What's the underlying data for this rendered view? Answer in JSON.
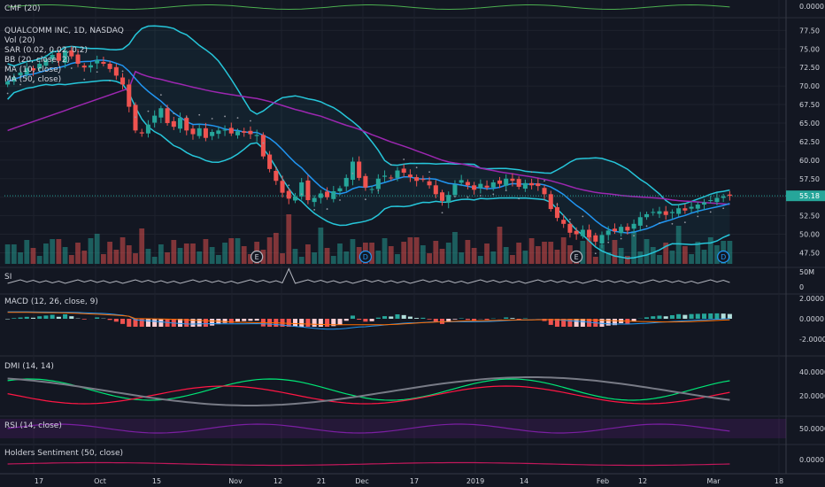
{
  "chart_data": {
    "type": "candlestick",
    "symbol_title": "QUALCOMM INC, 1D, NASDAQ",
    "last_price": "55.18",
    "time_axis_labels": [
      "17",
      "Oct",
      "15",
      "Nov",
      "12",
      "21",
      "Dec",
      "17",
      "2019",
      "14",
      "Feb",
      "12",
      "Mar",
      "18"
    ],
    "price_axis": {
      "ticks": [
        "77.50",
        "75.00",
        "72.50",
        "70.00",
        "67.50",
        "65.00",
        "62.50",
        "60.00",
        "57.50",
        "55.18",
        "52.50",
        "50.00",
        "47.50"
      ],
      "ylim": [
        46,
        78.5
      ]
    },
    "earnings_markers": [
      {
        "label": "E"
      },
      {
        "label": "D"
      },
      {
        "label": "E"
      },
      {
        "label": "D"
      }
    ],
    "close": [
      70.6,
      71.2,
      71.8,
      72.4,
      72.1,
      73.0,
      73.6,
      74.2,
      73.4,
      74.8,
      74.0,
      73.0,
      72.5,
      72.8,
      73.5,
      73.0,
      72.3,
      71.4,
      70.2,
      67.2,
      64.0,
      63.6,
      64.8,
      66.0,
      67.0,
      65.0,
      64.5,
      65.7,
      64.0,
      63.5,
      64.3,
      63.0,
      63.8,
      64.0,
      64.1,
      63.6,
      63.9,
      63.7,
      63.5,
      63.4,
      60.5,
      58.8,
      57.2,
      55.6,
      54.8,
      55.1,
      57.0,
      54.6,
      54.9,
      55.5,
      55.0,
      55.8,
      56.2,
      57.6,
      59.8,
      57.6,
      56.3,
      56.1,
      57.5,
      57.9,
      57.6,
      58.6,
      58.3,
      57.7,
      57.2,
      57.4,
      56.6,
      55.4,
      54.5,
      55.3,
      56.7,
      57.3,
      56.6,
      56.0,
      56.8,
      56.3,
      57.0,
      56.8,
      57.5,
      57.2,
      56.4,
      56.9,
      56.6,
      56.5,
      55.4,
      53.4,
      52.2,
      51.4,
      50.2,
      50.0,
      50.6,
      49.6,
      49.0,
      49.9,
      50.5,
      50.4,
      51.0,
      50.5,
      51.4,
      52.3,
      52.7,
      53.0,
      53.1,
      52.6,
      53.0,
      53.5,
      53.2,
      53.7,
      54.0,
      54.3,
      54.6,
      54.9,
      55.1,
      55.18
    ],
    "ma10_trend": "follows price, smoothing ~10 bars",
    "ma50_trend": "rises to ~69.9 in Oct, declines to ~53.5 by late Feb, flat after",
    "volume_axis": {
      "ticks": [
        "50M",
        "0"
      ]
    },
    "indicator_panels": [
      {
        "id": "cmf",
        "name": "CMF (20)",
        "ticks": [
          "0.0000"
        ]
      },
      {
        "id": "si",
        "name": "SI",
        "ticks": [
          "50M",
          "0"
        ]
      },
      {
        "id": "macd",
        "name": "MACD (12, 26, close, 9)",
        "ticks": [
          "2.0000",
          "0.0000",
          "-2.0000"
        ]
      },
      {
        "id": "dmi",
        "name": "DMI (14, 14)",
        "ticks": [
          "40.0000",
          "20.0000"
        ]
      },
      {
        "id": "rsi",
        "name": "RSI (14, close)",
        "ticks": [
          "50.0000"
        ]
      },
      {
        "id": "holders",
        "name": "Holders Sentiment (50, close)",
        "ticks": [
          "0.0000"
        ]
      }
    ],
    "main_legend": [
      "Vol (20)",
      "SAR (0.02, 0.02, 0.2)",
      "BB (20, close, 2)",
      "MA (10, close)",
      "MA (50, close)"
    ],
    "colors": {
      "bg": "#131722",
      "up": "#26a69a",
      "down": "#ef5350",
      "bb": "#26c6da",
      "ma10": "#2196f3",
      "ma50": "#9c27b0",
      "sar": "#9598a1",
      "cmf": "#4caf50",
      "macd_line": "#2196f3",
      "macd_signal": "#ff6d00",
      "dmi_plus": "#00e676",
      "dmi_minus": "#ff1744",
      "adx": "#787b86",
      "rsi": "#7b1fa2",
      "holders": "#c2185b"
    }
  }
}
